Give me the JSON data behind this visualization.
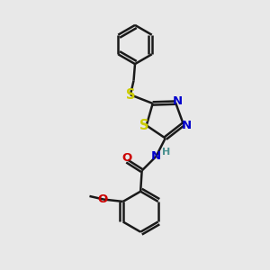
{
  "background_color": "#e8e8e8",
  "bond_color": "#1a1a1a",
  "sulfur_color": "#cccc00",
  "nitrogen_color": "#0000cc",
  "oxygen_color": "#cc0000",
  "teal_color": "#4a9090",
  "figsize": [
    3.0,
    3.0
  ],
  "dpi": 100,
  "xlim": [
    0,
    10
  ],
  "ylim": [
    0,
    10
  ]
}
